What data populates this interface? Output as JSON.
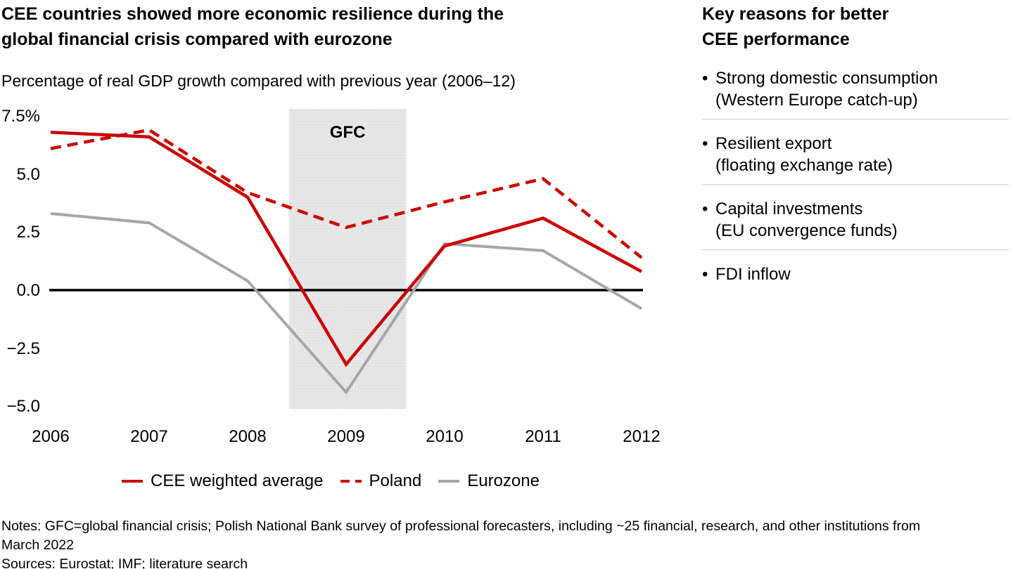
{
  "header": {
    "title_line1": "CEE countries showed more economic resilience during the",
    "title_line2": "global financial crisis compared with eurozone",
    "subtitle": "Percentage of real GDP growth compared with previous year (2006–12)"
  },
  "chart_data": {
    "type": "line",
    "x": [
      2006,
      2007,
      2008,
      2009,
      2010,
      2011,
      2012
    ],
    "series": [
      {
        "name": "CEE weighted average",
        "color": "#cc0000",
        "style": "solid",
        "values": [
          6.8,
          6.6,
          4.0,
          -3.2,
          1.9,
          3.1,
          0.8
        ]
      },
      {
        "name": "Poland",
        "color": "#cc0000",
        "style": "dashed",
        "values": [
          6.1,
          6.9,
          4.2,
          2.7,
          3.8,
          4.8,
          1.4
        ]
      },
      {
        "name": "Eurozone",
        "color": "#a6a6a6",
        "style": "solid",
        "values": [
          3.3,
          2.9,
          0.4,
          -4.4,
          2.0,
          1.7,
          -0.8
        ]
      }
    ],
    "xlabel": "",
    "ylabel": "",
    "ylim": [
      -5.0,
      7.5
    ],
    "yticks": [
      "7.5%",
      "5.0",
      "2.5",
      "0.0",
      "−2.5",
      "−5.0"
    ],
    "ytick_values": [
      7.5,
      5.0,
      2.5,
      0.0,
      -2.5,
      -5.0
    ],
    "annotation": {
      "label": "GFC",
      "x_start": 2008.42,
      "x_end": 2009.61
    },
    "zero_line": true,
    "grid": false,
    "legend_position": "bottom",
    "band_color": "#e7e7e7",
    "axis_color": "#000000"
  },
  "right_panel": {
    "title_line1": "Key reasons for better",
    "title_line2": "CEE performance",
    "bullet_char": "•",
    "bullets": [
      {
        "text": "Strong domestic consumption",
        "sub": "(Western Europe catch-up)"
      },
      {
        "text": "Resilient export",
        "sub": "(floating exchange rate)"
      },
      {
        "text": "Capital investments",
        "sub": "(EU convergence funds)"
      },
      {
        "text": "FDI inflow",
        "sub": ""
      }
    ]
  },
  "footer": {
    "notes_line1": "Notes: GFC=global financial crisis; Polish National Bank survey of professional forecasters, including ~25 financial, research, and other institutions from",
    "notes_line2": "March 2022",
    "sources": "Sources: Eurostat; IMF; literature search"
  }
}
